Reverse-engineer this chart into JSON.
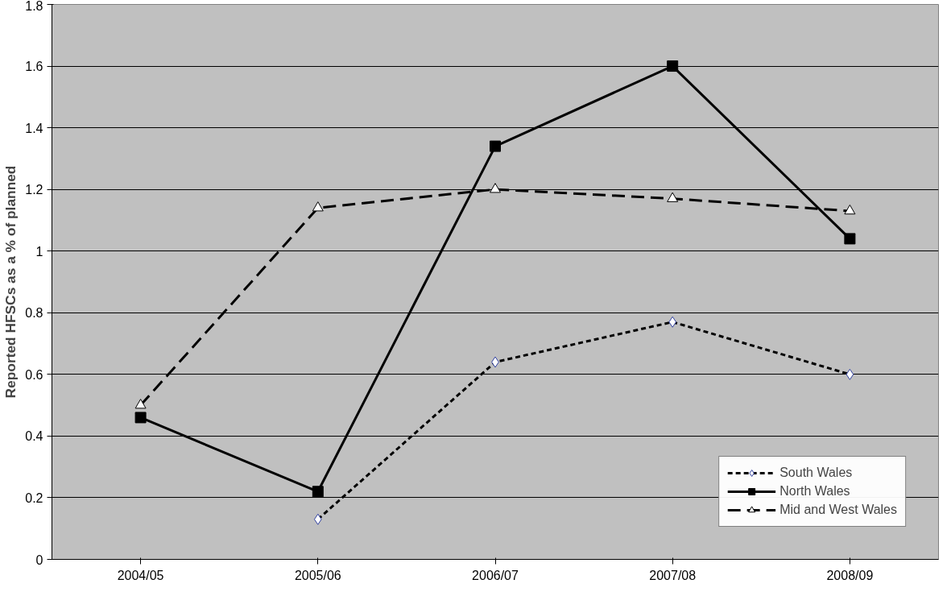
{
  "chart_data": {
    "type": "line",
    "ylabel": "Reported HFSCs as a % of planned",
    "categories": [
      "2004/05",
      "2005/06",
      "2006/07",
      "2007/08",
      "2008/09"
    ],
    "ylim": [
      0,
      1.8
    ],
    "yticks": [
      0,
      0.2,
      0.4,
      0.6,
      0.8,
      1,
      1.2,
      1.4,
      1.6,
      1.8
    ],
    "grid": "y",
    "legend": "bottom right",
    "series": [
      {
        "name": "South Wales",
        "color": "#000000",
        "marker": "diamond",
        "line_style": "dotted",
        "values": [
          null,
          0.13,
          0.64,
          0.77,
          0.6
        ]
      },
      {
        "name": "North Wales",
        "color": "#000000",
        "marker": "square",
        "line_style": "solid",
        "values": [
          0.46,
          0.22,
          1.34,
          1.6,
          1.04
        ]
      },
      {
        "name": "Mid and West Wales",
        "color": "#000000",
        "marker": "triangle",
        "line_style": "dashed",
        "values": [
          0.5,
          1.14,
          1.2,
          1.17,
          1.13
        ]
      }
    ]
  }
}
